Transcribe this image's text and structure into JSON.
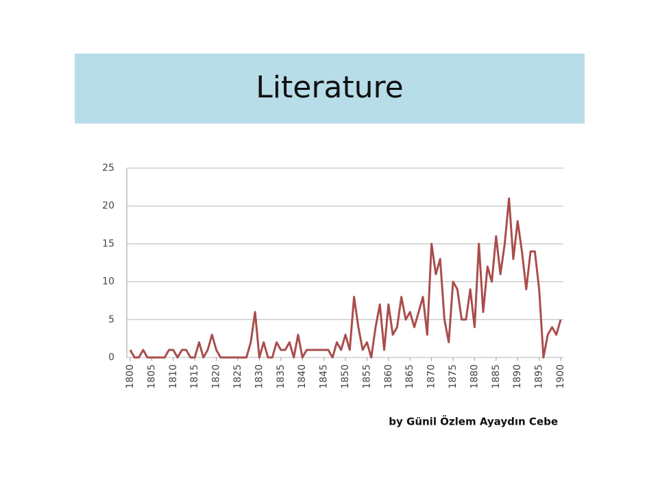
{
  "chart_data": {
    "type": "line",
    "title": "Literature",
    "subtitle": "by Günil Özlem Ayaydın Cebe",
    "x": [
      1800,
      1801,
      1802,
      1803,
      1804,
      1805,
      1806,
      1807,
      1808,
      1809,
      1810,
      1811,
      1812,
      1813,
      1814,
      1815,
      1816,
      1817,
      1818,
      1819,
      1820,
      1821,
      1822,
      1823,
      1824,
      1825,
      1826,
      1827,
      1828,
      1829,
      1830,
      1831,
      1832,
      1833,
      1834,
      1835,
      1836,
      1837,
      1838,
      1839,
      1840,
      1841,
      1842,
      1843,
      1844,
      1845,
      1846,
      1847,
      1848,
      1849,
      1850,
      1851,
      1852,
      1853,
      1854,
      1855,
      1856,
      1857,
      1858,
      1859,
      1860,
      1861,
      1862,
      1863,
      1864,
      1865,
      1866,
      1867,
      1868,
      1869,
      1870,
      1871,
      1872,
      1873,
      1874,
      1875,
      1876,
      1877,
      1878,
      1879,
      1880,
      1881,
      1882,
      1883,
      1884,
      1885,
      1886,
      1887,
      1888,
      1889,
      1890,
      1891,
      1892,
      1893,
      1894,
      1895,
      1896,
      1897,
      1898,
      1899,
      1900
    ],
    "values": [
      1,
      0,
      0,
      1,
      0,
      0,
      0,
      0,
      0,
      1,
      1,
      0,
      1,
      1,
      0,
      0,
      2,
      0,
      1,
      3,
      1,
      0,
      0,
      0,
      0,
      0,
      0,
      0,
      2,
      6,
      0,
      2,
      0,
      0,
      2,
      1,
      1,
      2,
      0,
      3,
      0,
      1,
      1,
      1,
      1,
      1,
      1,
      0,
      2,
      1,
      3,
      1,
      8,
      4,
      1,
      2,
      0,
      4,
      7,
      1,
      7,
      3,
      4,
      8,
      5,
      6,
      4,
      6,
      8,
      3,
      15,
      11,
      13,
      5,
      2,
      10,
      9,
      5,
      5,
      9,
      4,
      15,
      6,
      12,
      10,
      16,
      11,
      15,
      21,
      13,
      18,
      14,
      9,
      14,
      14,
      9,
      0,
      3,
      4,
      3,
      5
    ],
    "color": "#a94d4b",
    "xlim": [
      1800,
      1900
    ],
    "xticks": [
      1800,
      1805,
      1810,
      1815,
      1820,
      1825,
      1830,
      1835,
      1840,
      1845,
      1850,
      1855,
      1860,
      1865,
      1870,
      1875,
      1880,
      1885,
      1890,
      1895,
      1900
    ],
    "ylim": [
      0,
      25
    ],
    "yticks": [
      0,
      5,
      10,
      15,
      20,
      25
    ],
    "grid": true
  }
}
